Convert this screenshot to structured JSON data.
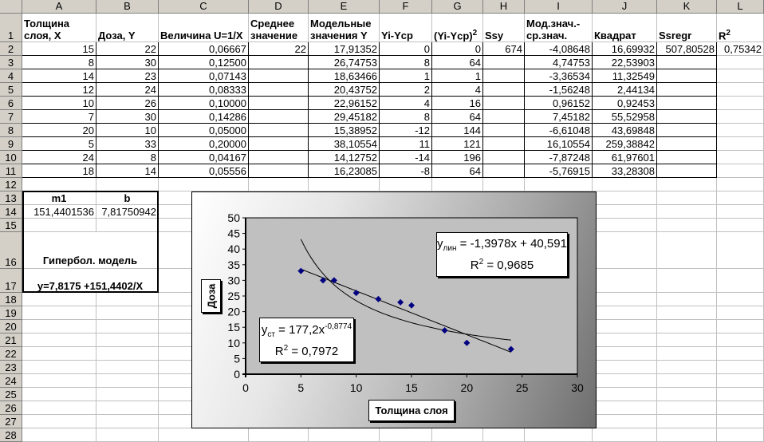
{
  "columns": [
    "A",
    "B",
    "C",
    "D",
    "E",
    "F",
    "G",
    "H",
    "I",
    "J",
    "K",
    "L"
  ],
  "rows": [
    "1",
    "2",
    "3",
    "4",
    "5",
    "6",
    "7",
    "8",
    "9",
    "10",
    "11",
    "12",
    "13",
    "14",
    "15",
    "16",
    "17",
    "18",
    "19",
    "20",
    "21",
    "22",
    "23",
    "24",
    "25",
    "26",
    "27",
    "28"
  ],
  "headers": {
    "A": [
      "Толщина",
      "слоя, X"
    ],
    "B": [
      "",
      "Доза, Y"
    ],
    "C": [
      "",
      "Величина U=1/X"
    ],
    "D": [
      "Среднее",
      "значение"
    ],
    "E": [
      "Модельные",
      "значения Y"
    ],
    "F": [
      "",
      "Yi-Ycp"
    ],
    "G": [
      "",
      "(Yi-Ycp)"
    ],
    "G_sup": "2",
    "H": [
      "",
      "Ssy"
    ],
    "I": [
      "Мод.знач.-",
      "ср.знач."
    ],
    "J": [
      "",
      "Квадрат"
    ],
    "K": [
      "",
      "Ssregr"
    ],
    "L": [
      "",
      "R"
    ],
    "L_sup": "2"
  },
  "table": [
    [
      "15",
      "22",
      "0,06667",
      "22",
      "17,91352",
      "0",
      "0",
      "674",
      "-4,08648",
      "16,69932",
      "507,80528",
      "0,75342"
    ],
    [
      "8",
      "30",
      "0,12500",
      "",
      "26,74753",
      "8",
      "64",
      "",
      "4,74753",
      "22,53903",
      "",
      ""
    ],
    [
      "14",
      "23",
      "0,07143",
      "",
      "18,63466",
      "1",
      "1",
      "",
      "-3,36534",
      "11,32549",
      "",
      ""
    ],
    [
      "12",
      "24",
      "0,08333",
      "",
      "20,43752",
      "2",
      "4",
      "",
      "-1,56248",
      "2,44134",
      "",
      ""
    ],
    [
      "10",
      "26",
      "0,10000",
      "",
      "22,96152",
      "4",
      "16",
      "",
      "0,96152",
      "0,92453",
      "",
      ""
    ],
    [
      "7",
      "30",
      "0,14286",
      "",
      "29,45182",
      "8",
      "64",
      "",
      "7,45182",
      "55,52958",
      "",
      ""
    ],
    [
      "20",
      "10",
      "0,05000",
      "",
      "15,38952",
      "-12",
      "144",
      "",
      "-6,61048",
      "43,69848",
      "",
      ""
    ],
    [
      "5",
      "33",
      "0,20000",
      "",
      "38,10554",
      "11",
      "121",
      "",
      "16,10554",
      "259,38842",
      "",
      ""
    ],
    [
      "24",
      "8",
      "0,04167",
      "",
      "14,12752",
      "-14",
      "196",
      "",
      "-7,87248",
      "61,97601",
      "",
      ""
    ],
    [
      "18",
      "14",
      "0,05556",
      "",
      "16,23085",
      "-8",
      "64",
      "",
      "-5,76915",
      "33,28308",
      "",
      ""
    ]
  ],
  "hyperbolic": {
    "m1_label": "m1",
    "b_label": "b",
    "m1_value": "151,4401536",
    "b_value": "7,81750942",
    "title": "Гипербол. модель",
    "equation": "y=7,8175 +151,4402/X"
  },
  "chart_data": {
    "type": "scatter",
    "xlabel": "Толщина слоя",
    "ylabel": "Доза",
    "xlim": [
      0,
      30
    ],
    "ylim": [
      0,
      50
    ],
    "xticks": [
      "0",
      "5",
      "10",
      "15",
      "20",
      "25",
      "30"
    ],
    "yticks": [
      "0",
      "5",
      "10",
      "15",
      "20",
      "25",
      "30",
      "35",
      "40",
      "45",
      "50"
    ],
    "points": [
      [
        15,
        22
      ],
      [
        8,
        30
      ],
      [
        14,
        23
      ],
      [
        12,
        24
      ],
      [
        10,
        26
      ],
      [
        7,
        30
      ],
      [
        20,
        10
      ],
      [
        5,
        33
      ],
      [
        24,
        8
      ],
      [
        18,
        14
      ]
    ],
    "marker_color": "#000080",
    "plot_bg": "#c0c0c0",
    "trendlines": [
      {
        "type": "linear",
        "slope": -1.3978,
        "intercept": 40.591,
        "range": [
          5,
          24
        ],
        "label_y": "y",
        "label_sub": "лин",
        "label_eq": " = -1,3978x + 40,591",
        "r2_label": "R",
        "r2_sup": "2",
        "r2_text": " = 0,9685"
      },
      {
        "type": "power",
        "coef": 177.2,
        "exp": -0.8774,
        "range": [
          5,
          24
        ],
        "label_y": "y",
        "label_sub": "ст",
        "label_eq": " = 177,2x",
        "label_sup": "-0,8774",
        "r2_label": "R",
        "r2_sup": "2",
        "r2_text": " = 0,7972"
      }
    ],
    "grid": false,
    "legend": "none"
  }
}
